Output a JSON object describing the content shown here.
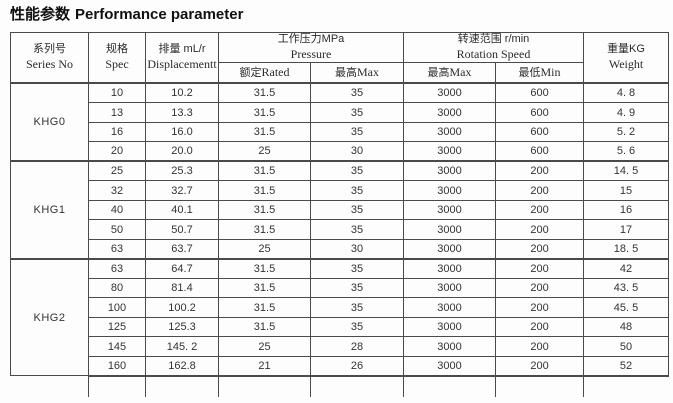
{
  "title": {
    "zh": "性能参数",
    "en": "Performance parameter"
  },
  "table": {
    "headers": {
      "series_zh": "系列号",
      "series_en": "Series  No",
      "spec_zh": "规格",
      "spec_en": "Spec",
      "displacement_zh": "排量 mL/r",
      "displacement_en": "Displacementt",
      "pressure_zh": "工作压力MPa",
      "pressure_en": "Pressure",
      "pressure_rated": "额定",
      "pressure_rated_en": "Rated",
      "pressure_max": "最高",
      "pressure_max_en": "Max",
      "rotation_zh": "转速范围  r/min",
      "rotation_en": "Rotation Speed",
      "rotation_max": "最高",
      "rotation_max_en": "Max",
      "rotation_min": "最低",
      "rotation_min_en": "Min",
      "weight_zh": "重量KG",
      "weight_en": "Weight"
    },
    "groups": [
      {
        "series": "KHG0",
        "rows": [
          [
            "10",
            "10.2",
            "31.5",
            "35",
            "3000",
            "600",
            "4. 8"
          ],
          [
            "13",
            "13.3",
            "31.5",
            "35",
            "3000",
            "600",
            "4. 9"
          ],
          [
            "16",
            "16.0",
            "31.5",
            "35",
            "3000",
            "600",
            "5. 2"
          ],
          [
            "20",
            "20.0",
            "25",
            "30",
            "3000",
            "600",
            "5. 6"
          ]
        ]
      },
      {
        "series": "KHG1",
        "rows": [
          [
            "25",
            "25.3",
            "31.5",
            "35",
            "3000",
            "200",
            "14. 5"
          ],
          [
            "32",
            "32.7",
            "31.5",
            "35",
            "3000",
            "200",
            "15"
          ],
          [
            "40",
            "40.1",
            "31.5",
            "35",
            "3000",
            "200",
            "16"
          ],
          [
            "50",
            "50.7",
            "31.5",
            "35",
            "3000",
            "200",
            "17"
          ],
          [
            "63",
            "63.7",
            "25",
            "30",
            "3000",
            "200",
            "18. 5"
          ]
        ]
      },
      {
        "series": "KHG2",
        "rows": [
          [
            "63",
            "64.7",
            "31.5",
            "35",
            "3000",
            "200",
            "42"
          ],
          [
            "80",
            "81.4",
            "31.5",
            "35",
            "3000",
            "200",
            "43. 5"
          ],
          [
            "100",
            "100.2",
            "31.5",
            "35",
            "3000",
            "200",
            "45. 5"
          ],
          [
            "125",
            "125.3",
            "31.5",
            "35",
            "3000",
            "200",
            "48"
          ],
          [
            "145",
            "145. 2",
            "25",
            "28",
            "3000",
            "200",
            "50"
          ],
          [
            "160",
            "162.8",
            "21",
            "26",
            "3000",
            "200",
            "52"
          ]
        ]
      }
    ]
  },
  "colors": {
    "border": "#4a4a4a",
    "text": "#2b2b2b",
    "background": "#fdfdfd"
  }
}
